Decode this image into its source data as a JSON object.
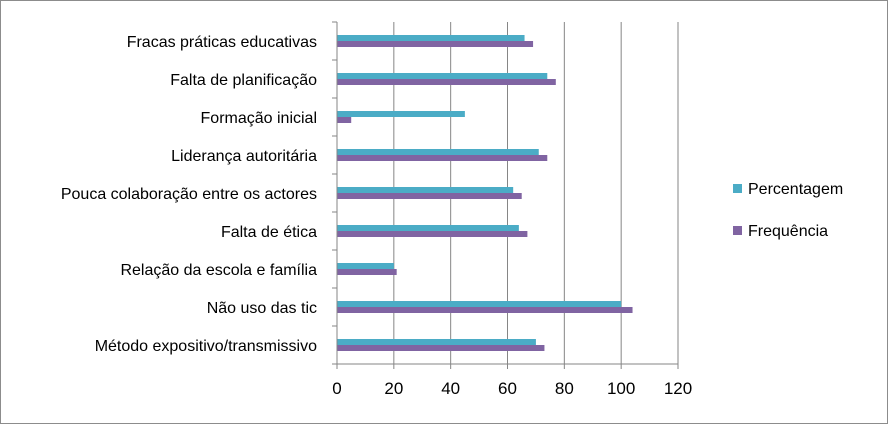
{
  "chart_data": {
    "type": "bar",
    "orientation": "horizontal",
    "categories": [
      "Fracas práticas educativas",
      "Falta de planificação",
      "Formação inicial",
      "Liderança autoritária",
      "Pouca colaboração entre os actores",
      "Falta de ética",
      "Relação da escola e família",
      "Não uso das tic",
      "Método expositivo/transmissivo"
    ],
    "series": [
      {
        "name": "Percentagem",
        "color": "#4bacc6",
        "values": [
          66,
          74,
          45,
          71,
          62,
          64,
          20,
          100,
          70
        ]
      },
      {
        "name": "Frequência",
        "color": "#8064a2",
        "values": [
          69,
          77,
          5,
          74,
          65,
          67,
          21,
          104,
          73
        ]
      }
    ],
    "xlim": [
      0,
      120
    ],
    "xticks": [
      "0",
      "20",
      "40",
      "60",
      "80",
      "100",
      "120"
    ],
    "grid": true,
    "legend": "right"
  }
}
